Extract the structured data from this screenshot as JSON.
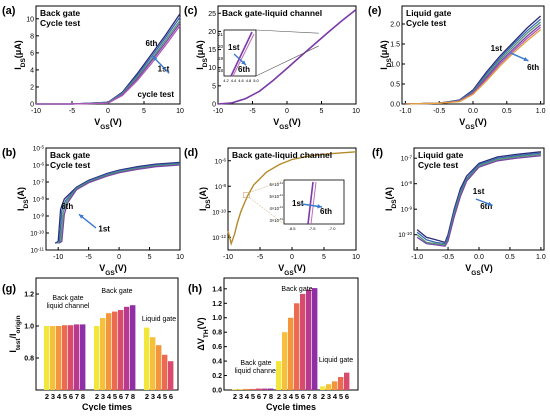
{
  "figure_labels": [
    "(a)",
    "(b)",
    "(c)",
    "(d)",
    "(e)",
    "(f)",
    "(g)",
    "(h)"
  ],
  "series_colors": [
    "#2b2b7a",
    "#3a68b4",
    "#4f9a6d",
    "#7a45a8",
    "#b15ab8",
    "#e3a23a"
  ],
  "chart_data": [
    {
      "panel": "(a)",
      "type": "line",
      "title": "Back gate",
      "subtitle": "Cycle test",
      "xlabel": "V",
      "xlabel_sub": "GS",
      "xunit": "(V)",
      "ylabel": "I",
      "ylabel_sub": "DS",
      "yunit": "(μA)",
      "xlim": [
        -10,
        10
      ],
      "ylim": [
        0,
        11.5
      ],
      "xticks": [
        "-10",
        "-5",
        "0",
        "5",
        "10"
      ],
      "yticks": [
        "0",
        "2",
        "4",
        "6",
        "8",
        "10"
      ],
      "annotations": [
        "6th",
        "1st",
        "cycle test"
      ],
      "series": [
        {
          "x": [
            -10,
            -5,
            0,
            2,
            4,
            6,
            8,
            10
          ],
          "y": [
            0,
            0,
            0.2,
            1.4,
            3.5,
            5.8,
            8.1,
            10.6
          ]
        },
        {
          "x": [
            -10,
            -5,
            0,
            2,
            4,
            6,
            8,
            10
          ],
          "y": [
            0,
            0,
            0.2,
            1.3,
            3.3,
            5.5,
            7.8,
            10.2
          ]
        },
        {
          "x": [
            -10,
            -5,
            0,
            2,
            4,
            6,
            8,
            10
          ],
          "y": [
            0,
            0,
            0.15,
            1.2,
            3.1,
            5.2,
            7.5,
            9.8
          ]
        },
        {
          "x": [
            -10,
            -5,
            0,
            2,
            4,
            6,
            8,
            10
          ],
          "y": [
            0,
            0,
            0.1,
            1.1,
            2.9,
            5.0,
            7.2,
            9.5
          ]
        },
        {
          "x": [
            -10,
            -5,
            0,
            2,
            4,
            6,
            8,
            10
          ],
          "y": [
            0,
            0,
            0.1,
            1.0,
            2.7,
            4.7,
            6.9,
            9.2
          ]
        }
      ]
    },
    {
      "panel": "(b)",
      "type": "line",
      "title": "Back gate",
      "subtitle": "Cycle test",
      "xlabel": "V",
      "xlabel_sub": "GS",
      "xunit": "(V)",
      "ylabel": "I",
      "ylabel_sub": "DS",
      "yunit": "(A)",
      "xlim": [
        -12,
        10
      ],
      "ylim": [
        -11,
        -5
      ],
      "yscale": "log",
      "xticks": [
        "-10",
        "-5",
        "0",
        "5",
        "10"
      ],
      "yticks": [
        "10^-11",
        "10^-10",
        "10^-9",
        "10^-8",
        "10^-7",
        "10^-6",
        "10^-5"
      ],
      "annotations": [
        "6th",
        "1st"
      ],
      "series": [
        {
          "x": [
            -10.5,
            -10,
            -9.6,
            -9,
            -7,
            -5,
            -2,
            0,
            3,
            6,
            10
          ],
          "y": [
            -10.6,
            -10.5,
            -8.6,
            -8.0,
            -7.3,
            -6.9,
            -6.5,
            -6.3,
            -6.1,
            -5.95,
            -5.85
          ]
        },
        {
          "x": [
            -10.3,
            -9.8,
            -9.4,
            -8.8,
            -7,
            -5,
            -2,
            0,
            3,
            6,
            10
          ],
          "y": [
            -10.6,
            -10.5,
            -8.7,
            -8.1,
            -7.35,
            -6.95,
            -6.55,
            -6.35,
            -6.15,
            -6.0,
            -5.9
          ]
        },
        {
          "x": [
            -10.1,
            -9.6,
            -9.2,
            -8.6,
            -7,
            -5,
            -2,
            0,
            3,
            6,
            10
          ],
          "y": [
            -10.6,
            -10.5,
            -8.8,
            -8.15,
            -7.4,
            -7.0,
            -6.6,
            -6.4,
            -6.2,
            -6.05,
            -5.95
          ]
        },
        {
          "x": [
            -9.9,
            -9.4,
            -9.0,
            -8.4,
            -7,
            -5,
            -2,
            0,
            3,
            6,
            10
          ],
          "y": [
            -10.6,
            -10.5,
            -8.9,
            -8.2,
            -7.45,
            -7.05,
            -6.65,
            -6.45,
            -6.25,
            -6.1,
            -6.0
          ]
        }
      ]
    },
    {
      "panel": "(c)",
      "type": "line",
      "title": "Back gate-liquid channel",
      "xlabel": "V",
      "xlabel_sub": "GS",
      "xunit": "(V)",
      "ylabel": "I",
      "ylabel_sub": "DS",
      "yunit": "(μA)",
      "xlim": [
        -10,
        10
      ],
      "ylim": [
        0,
        27
      ],
      "xticks": [
        "-10",
        "-5",
        "0",
        "5",
        "10"
      ],
      "yticks": [
        "0",
        "5",
        "10",
        "15",
        "20",
        "25"
      ],
      "annotations": [
        "1st",
        "6th"
      ],
      "inset": {
        "yticks": [
          "21",
          "20",
          "19",
          "18"
        ],
        "xticks": [
          "4.2",
          "4.4",
          "4.6",
          "4.8",
          "5.0"
        ]
      },
      "series": [
        {
          "x": [
            -10,
            -8,
            -6,
            -4,
            -2,
            0,
            2,
            4,
            6,
            8,
            10
          ],
          "y": [
            0,
            0.3,
            1.5,
            3.5,
            6.5,
            9.8,
            13.2,
            16.5,
            19.8,
            23.0,
            26.0
          ]
        }
      ]
    },
    {
      "panel": "(d)",
      "type": "line",
      "title": "Back gate-liquid channel",
      "xlabel": "V",
      "xlabel_sub": "GS",
      "xunit": "(V)",
      "ylabel": "I",
      "ylabel_sub": "DS",
      "yunit": "(A)",
      "xlim": [
        -10,
        10
      ],
      "ylim": [
        -13,
        -5
      ],
      "yscale": "log",
      "xticks": [
        "-10",
        "-5",
        "0",
        "5",
        "10"
      ],
      "yticks": [
        "10^-12",
        "10^-10",
        "10^-8",
        "10^-6"
      ],
      "annotations": [
        "1st",
        "6th"
      ],
      "inset": {
        "yticks": [
          "6×10^-11",
          "5×10^-11",
          "4×10^-11",
          "3×10^-11"
        ],
        "xticks": [
          "-8.5",
          "-7.5",
          "-7.0"
        ]
      },
      "series": [
        {
          "x": [
            -10,
            -9.5,
            -9,
            -8.5,
            -8,
            -7,
            -6,
            -4,
            -2,
            0,
            3,
            6,
            10
          ],
          "y": [
            -11.5,
            -12.5,
            -11.8,
            -10.8,
            -10.0,
            -8.8,
            -7.9,
            -6.9,
            -6.3,
            -5.9,
            -5.6,
            -5.45,
            -5.3
          ]
        }
      ]
    },
    {
      "panel": "(e)",
      "type": "line",
      "title": "Liquid gate",
      "subtitle": "Cycle test",
      "xlabel": "V",
      "xlabel_sub": "GS",
      "xunit": "(V)",
      "ylabel": "I",
      "ylabel_sub": "DS",
      "yunit": "(μA)",
      "xlim": [
        -1.05,
        1.05
      ],
      "ylim": [
        0,
        2.45
      ],
      "xticks": [
        "-1.0",
        "-0.5",
        "0.0",
        "0.5",
        "1.0"
      ],
      "yticks": [
        "0.0",
        "0.5",
        "1.0",
        "1.5",
        "2.0"
      ],
      "annotations": [
        "1st",
        "6th"
      ],
      "series": [
        {
          "x": [
            -1.0,
            -0.5,
            -0.2,
            0.0,
            0.2,
            0.4,
            0.6,
            0.8,
            1.0
          ],
          "y": [
            0.0,
            0.02,
            0.1,
            0.35,
            0.8,
            1.2,
            1.55,
            1.9,
            2.2
          ]
        },
        {
          "x": [
            -1.0,
            -0.5,
            -0.2,
            0.0,
            0.2,
            0.4,
            0.6,
            0.8,
            1.0
          ],
          "y": [
            0.0,
            0.02,
            0.09,
            0.32,
            0.75,
            1.15,
            1.5,
            1.83,
            2.12
          ]
        },
        {
          "x": [
            -1.0,
            -0.5,
            -0.2,
            0.0,
            0.2,
            0.4,
            0.6,
            0.8,
            1.0
          ],
          "y": [
            0.0,
            0.02,
            0.08,
            0.3,
            0.7,
            1.1,
            1.44,
            1.77,
            2.05
          ]
        },
        {
          "x": [
            -1.0,
            -0.5,
            -0.2,
            0.0,
            0.2,
            0.4,
            0.6,
            0.8,
            1.0
          ],
          "y": [
            0.0,
            0.02,
            0.07,
            0.28,
            0.66,
            1.05,
            1.38,
            1.7,
            1.98
          ]
        },
        {
          "x": [
            -1.0,
            -0.5,
            -0.2,
            0.0,
            0.2,
            0.4,
            0.6,
            0.8,
            1.0
          ],
          "y": [
            0.0,
            0.02,
            0.07,
            0.26,
            0.62,
            1.0,
            1.33,
            1.64,
            1.92
          ]
        },
        {
          "x": [
            -1.0,
            -0.5,
            -0.2,
            0.0,
            0.2,
            0.4,
            0.6,
            0.8,
            1.0
          ],
          "y": [
            0.0,
            0.02,
            0.06,
            0.24,
            0.58,
            0.95,
            1.28,
            1.58,
            1.86
          ]
        }
      ]
    },
    {
      "panel": "(f)",
      "type": "line",
      "title": "Liquid gate",
      "subtitle": "Cycle test",
      "xlabel": "V",
      "xlabel_sub": "GS",
      "xunit": "(V)",
      "ylabel": "I",
      "ylabel_sub": "DS",
      "yunit": "(A)",
      "xlim": [
        -1.05,
        1.05
      ],
      "ylim": [
        -10.6,
        -6.6
      ],
      "yscale": "log",
      "xticks": [
        "-1.0",
        "-0.5",
        "0.0",
        "0.5",
        "1.0"
      ],
      "yticks": [
        "10^-10",
        "10^-9",
        "10^-8",
        "10^-7"
      ],
      "annotations": [
        "1st",
        "6th"
      ],
      "series": [
        {
          "x": [
            -1.0,
            -0.85,
            -0.7,
            -0.55,
            -0.5,
            -0.4,
            -0.3,
            -0.2,
            0.0,
            0.3,
            0.6,
            1.0
          ],
          "y": [
            -9.8,
            -10.1,
            -10.2,
            -10.3,
            -10.0,
            -9.0,
            -8.2,
            -7.7,
            -7.2,
            -6.95,
            -6.85,
            -6.75
          ]
        },
        {
          "x": [
            -1.0,
            -0.85,
            -0.7,
            -0.55,
            -0.5,
            -0.4,
            -0.3,
            -0.2,
            0.0,
            0.3,
            0.6,
            1.0
          ],
          "y": [
            -9.9,
            -10.2,
            -10.3,
            -10.35,
            -10.1,
            -9.1,
            -8.3,
            -7.8,
            -7.25,
            -7.0,
            -6.9,
            -6.8
          ]
        },
        {
          "x": [
            -1.0,
            -0.85,
            -0.7,
            -0.55,
            -0.5,
            -0.4,
            -0.3,
            -0.2,
            0.0,
            0.3,
            0.6,
            1.0
          ],
          "y": [
            -10.0,
            -10.3,
            -10.35,
            -10.4,
            -10.2,
            -9.2,
            -8.4,
            -7.85,
            -7.3,
            -7.05,
            -6.95,
            -6.85
          ]
        },
        {
          "x": [
            -1.0,
            -0.85,
            -0.7,
            -0.55,
            -0.5,
            -0.4,
            -0.3,
            -0.2,
            0.0,
            0.3,
            0.6,
            1.0
          ],
          "y": [
            -10.1,
            -10.35,
            -10.4,
            -10.45,
            -10.25,
            -9.3,
            -8.5,
            -7.9,
            -7.35,
            -7.1,
            -7.0,
            -6.9
          ]
        }
      ]
    },
    {
      "panel": "(g)",
      "type": "bar",
      "xlabel": "Cycle times",
      "ylabel": "I",
      "ylabel_sub": "test",
      "ylabel_mid": "/I",
      "ylabel_sub2": "origin",
      "ylim": [
        0.6,
        1.3
      ],
      "yticks": [
        "0.8",
        "1.0",
        "1.2"
      ],
      "groups": [
        {
          "label": "Back gate\nliquid channel",
          "categories": [
            "2",
            "3",
            "4",
            "5",
            "6",
            "7",
            "8"
          ],
          "values": [
            1.0,
            1.0,
            1.0,
            1.005,
            1.005,
            1.01,
            1.01
          ]
        },
        {
          "label": "Back gate",
          "categories": [
            "2",
            "3",
            "4",
            "5",
            "6",
            "7",
            "8"
          ],
          "values": [
            1.0,
            1.05,
            1.08,
            1.09,
            1.1,
            1.12,
            1.13
          ]
        },
        {
          "label": "Liquid gate",
          "categories": [
            "2",
            "3",
            "4",
            "5",
            "6"
          ],
          "values": [
            0.99,
            0.93,
            0.88,
            0.82,
            0.78
          ]
        }
      ]
    },
    {
      "panel": "(h)",
      "type": "bar",
      "xlabel": "Cycle times",
      "ylabel": "ΔV",
      "ylabel_sub": "TH",
      "yunit": "(V)",
      "ylim": [
        0,
        1.55
      ],
      "yticks": [
        "0.0",
        "0.2",
        "0.4",
        "0.6",
        "0.8",
        "1.0",
        "1.2",
        "1.4"
      ],
      "groups": [
        {
          "label": "Back gate\nliquid channel",
          "categories": [
            "2",
            "3",
            "4",
            "5",
            "6",
            "7",
            "8"
          ],
          "values": [
            0.01,
            0.01,
            0.015,
            0.015,
            0.02,
            0.02,
            0.02
          ]
        },
        {
          "label": "Back gate",
          "categories": [
            "2",
            "3",
            "4",
            "5",
            "6",
            "7",
            "8"
          ],
          "values": [
            0.4,
            0.8,
            1.0,
            1.2,
            1.33,
            1.39,
            1.41
          ]
        },
        {
          "label": "Liquid gate",
          "categories": [
            "2",
            "3",
            "4",
            "5",
            "6"
          ],
          "values": [
            0.05,
            0.08,
            0.12,
            0.18,
            0.24
          ]
        }
      ]
    }
  ]
}
